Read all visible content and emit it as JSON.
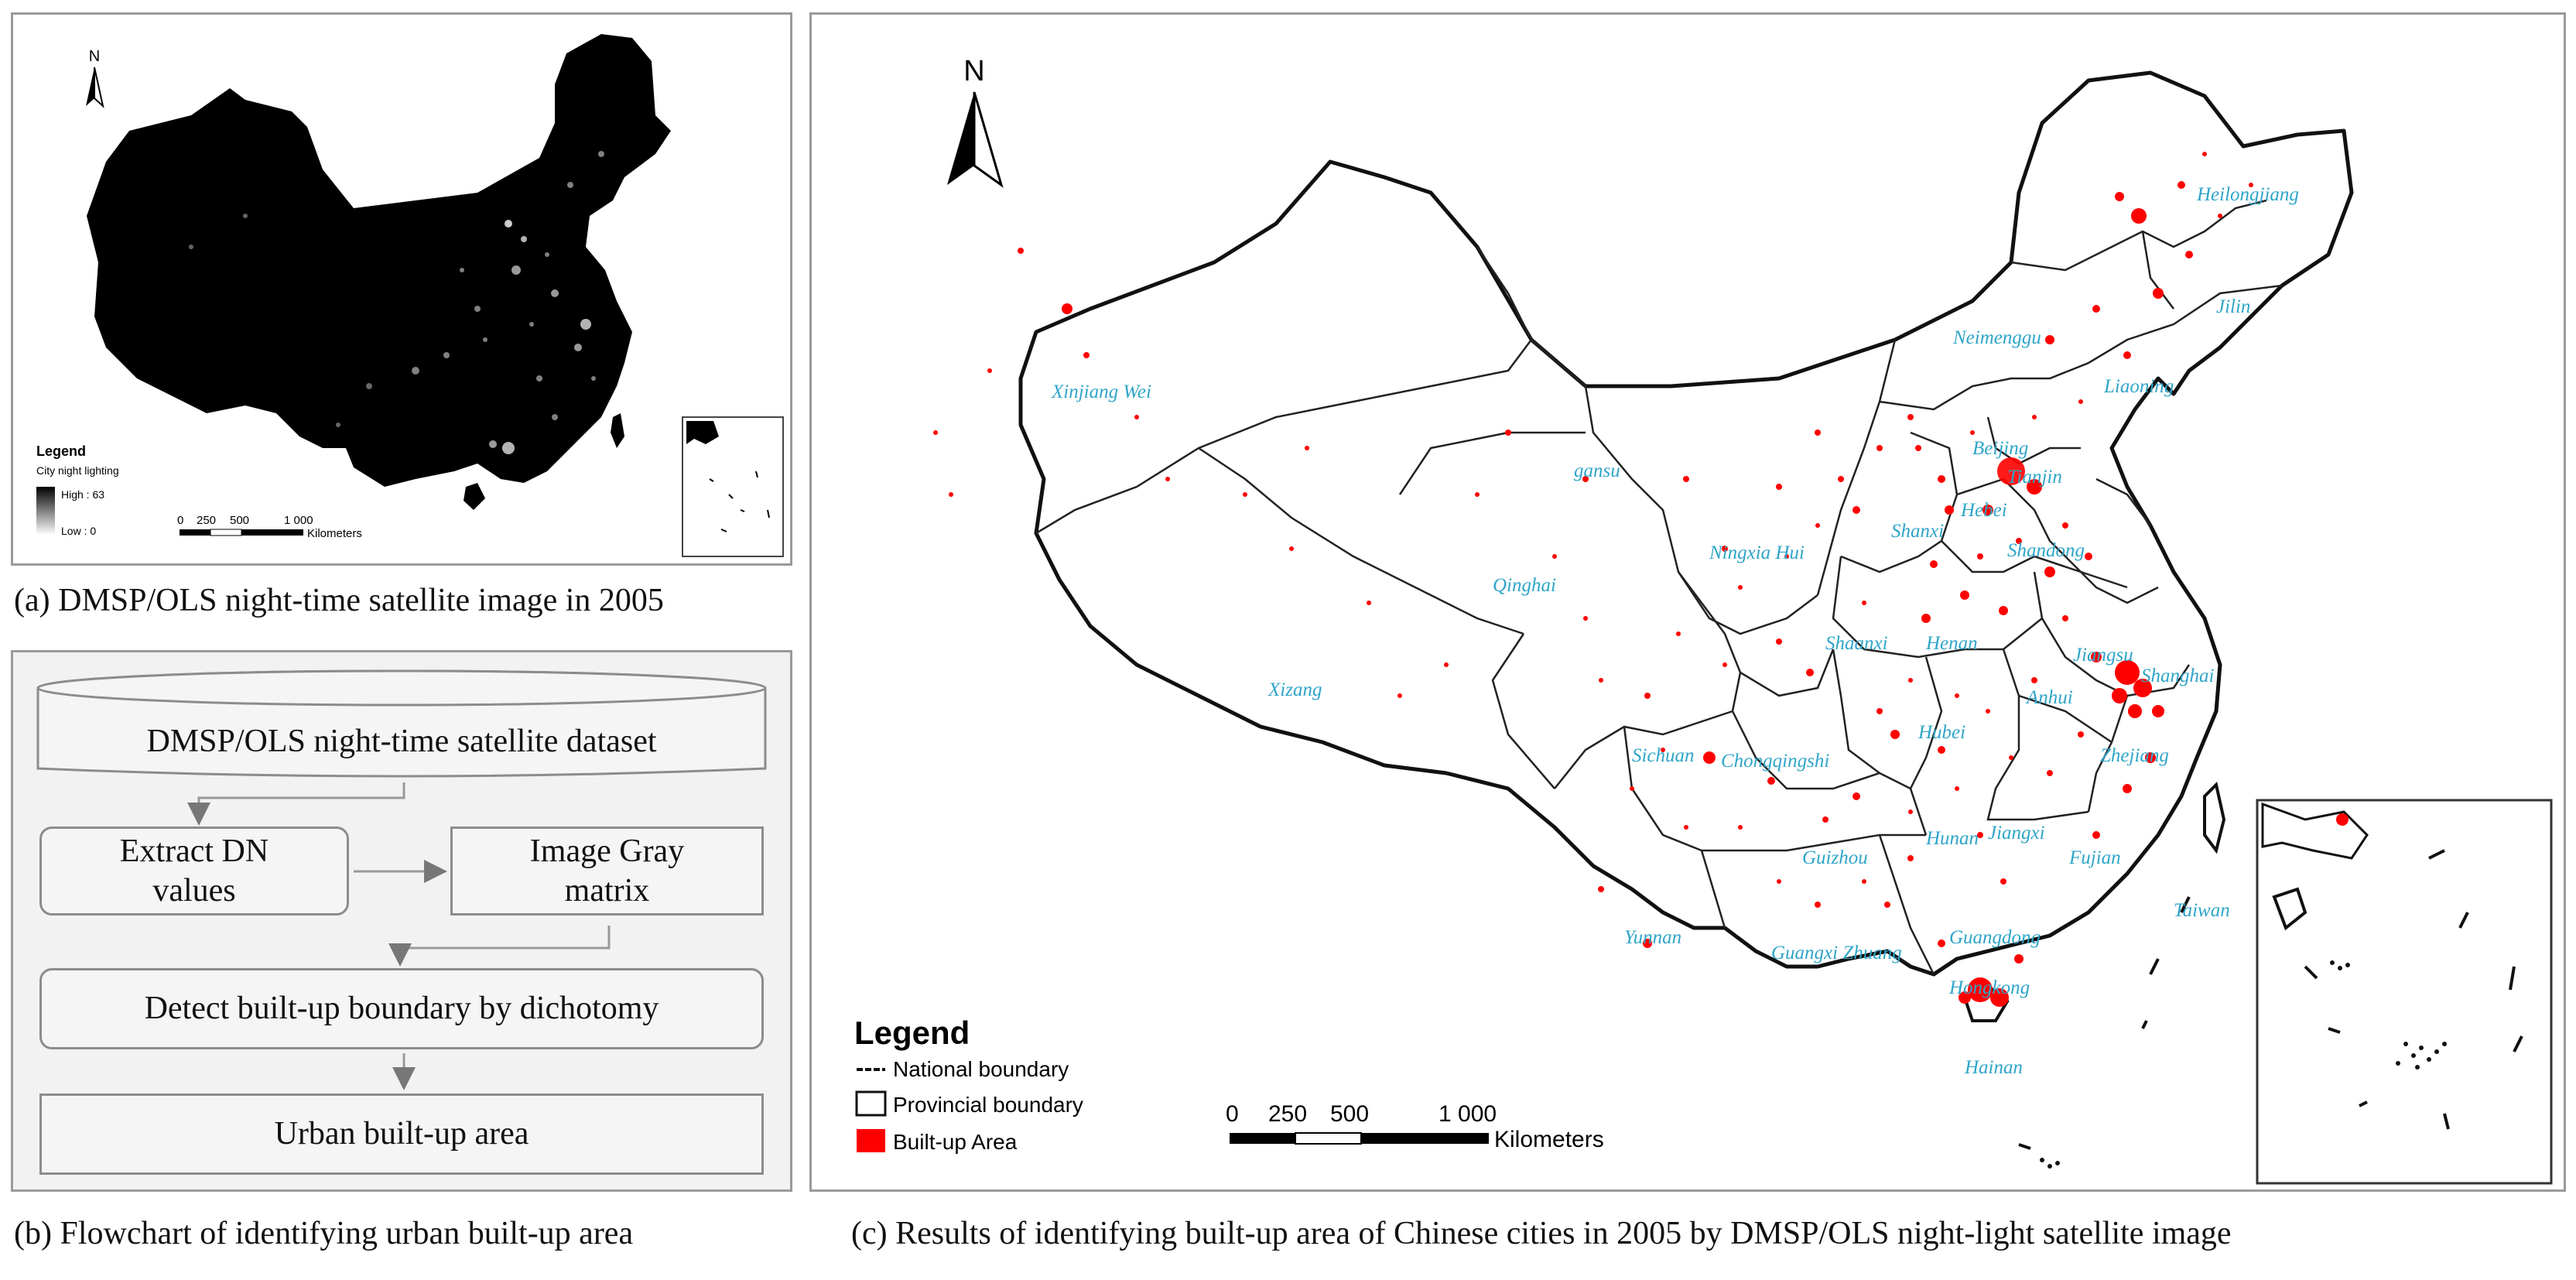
{
  "captions": {
    "a": "(a) DMSP/OLS night-time satellite image in 2005",
    "b": "(b) Flowchart of identifying urban built-up area",
    "c": "(c) Results of  identifying built-up area of Chinese cities in 2005 by DMSP/OLS night-light satellite image"
  },
  "panel_a": {
    "north_label": "N",
    "legend_title": "Legend",
    "legend_subtitle": "City night lighting",
    "legend_high": "High : 63",
    "legend_low": "Low : 0",
    "scale_ticks": [
      "0",
      "250",
      "500",
      "1 000"
    ],
    "scale_unit": "Kilometers"
  },
  "flowchart": {
    "dataset": "DMSP/OLS night-time satellite dataset",
    "extract_line1": "Extract DN",
    "extract_line2": "values",
    "gray_line1": "Image Gray",
    "gray_line2": "matrix",
    "detect": "Detect built-up boundary by dichotomy",
    "result": "Urban built-up  area"
  },
  "panel_c": {
    "north_label": "N",
    "legend_title": "Legend",
    "legend_items": [
      "National boundary",
      "Provincial boundary",
      "Built-up Area"
    ],
    "scale_ticks": [
      "0",
      "250",
      "500",
      "1 000"
    ],
    "scale_unit": "Kilometers",
    "provinces": [
      "Heilongjiang",
      "Jilin",
      "Neimenggu",
      "Liaoning",
      "Xinjiang Wei",
      "gansu",
      "Beijing",
      "Tianjin",
      "Hebei",
      "Shanxi",
      "Shandong",
      "Ningxia Hui",
      "Qinghai",
      "Shaanxi",
      "Henan",
      "Jiangsu",
      "Shanghai",
      "Anhui",
      "Zhejiang",
      "Xizang",
      "Sichuan",
      "Chongqingshi",
      "Hubei",
      "Hunan",
      "Jiangxi",
      "Fujian",
      "Guizhou",
      "Yunnan",
      "Guangxi Zhuang",
      "Guangdong",
      "Hongkong",
      "Taiwan",
      "Hainan"
    ]
  },
  "colors": {
    "built_up": "#ff0000",
    "province_label": "#2fa5c8",
    "flow_fill": "#f5f5f5",
    "night_base": "#000000"
  }
}
